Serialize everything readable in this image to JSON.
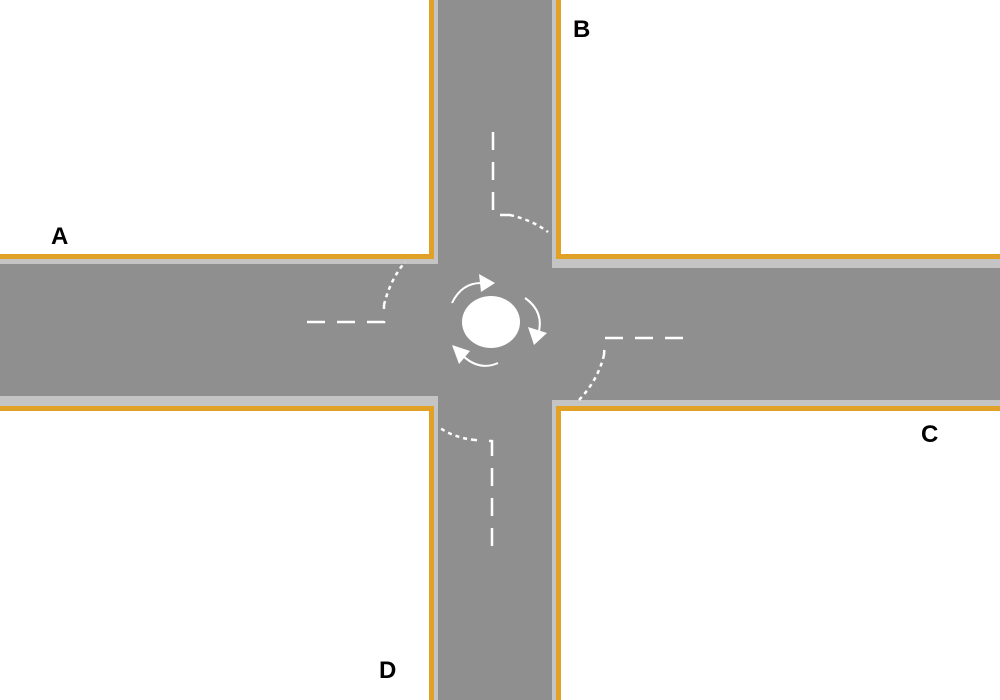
{
  "labels": {
    "a": "A",
    "b": "B",
    "c": "C",
    "d": "D"
  },
  "colors": {
    "road": "#8f8f8f",
    "curb": "#e0a126",
    "edge": "#c4c4c4",
    "marking": "#ffffff",
    "background": "#ffffff"
  }
}
